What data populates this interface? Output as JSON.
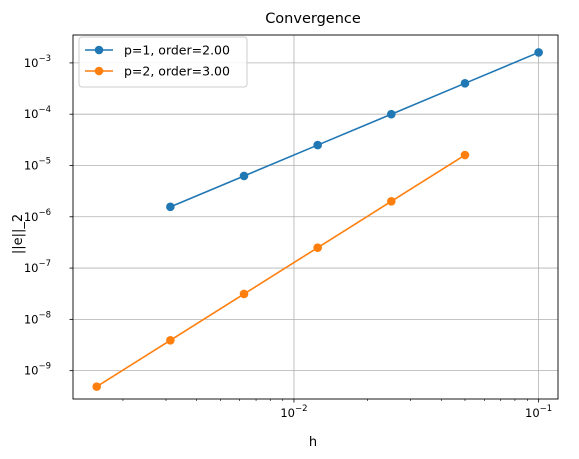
{
  "chart_data": {
    "type": "line",
    "title": "Convergence",
    "xlabel": "h",
    "ylabel": "||e||_2",
    "xscale": "log",
    "yscale": "log",
    "xlim": [
      0.00125,
      0.12
    ],
    "ylim": [
      2.8e-10,
      0.0035
    ],
    "grid": true,
    "legend_position": "top-left",
    "x_ticks": [
      {
        "value": 0.01,
        "base": "10",
        "exp": "−2"
      },
      {
        "value": 0.1,
        "base": "10",
        "exp": "−1"
      }
    ],
    "y_ticks": [
      {
        "value": 1e-09,
        "base": "10",
        "exp": "−9"
      },
      {
        "value": 1e-08,
        "base": "10",
        "exp": "−8"
      },
      {
        "value": 1e-07,
        "base": "10",
        "exp": "−7"
      },
      {
        "value": 1e-06,
        "base": "10",
        "exp": "−6"
      },
      {
        "value": 1e-05,
        "base": "10",
        "exp": "−5"
      },
      {
        "value": 0.0001,
        "base": "10",
        "exp": "−4"
      },
      {
        "value": 0.001,
        "base": "10",
        "exp": "−3"
      }
    ],
    "series": [
      {
        "name": "p=1, order=2.00",
        "color": "#1f77b4",
        "x": [
          0.1,
          0.05,
          0.025,
          0.0125,
          0.00625,
          0.003125
        ],
        "y": [
          0.0016,
          0.0004,
          0.0001,
          2.5e-05,
          6.25e-06,
          1.5625e-06
        ]
      },
      {
        "name": "p=2, order=3.00",
        "color": "#ff7f0e",
        "x": [
          0.05,
          0.025,
          0.0125,
          0.00625,
          0.003125,
          0.0015625
        ],
        "y": [
          1.6e-05,
          2e-06,
          2.5e-07,
          3.125e-08,
          3.90625e-09,
          4.8828125e-10
        ]
      }
    ]
  }
}
